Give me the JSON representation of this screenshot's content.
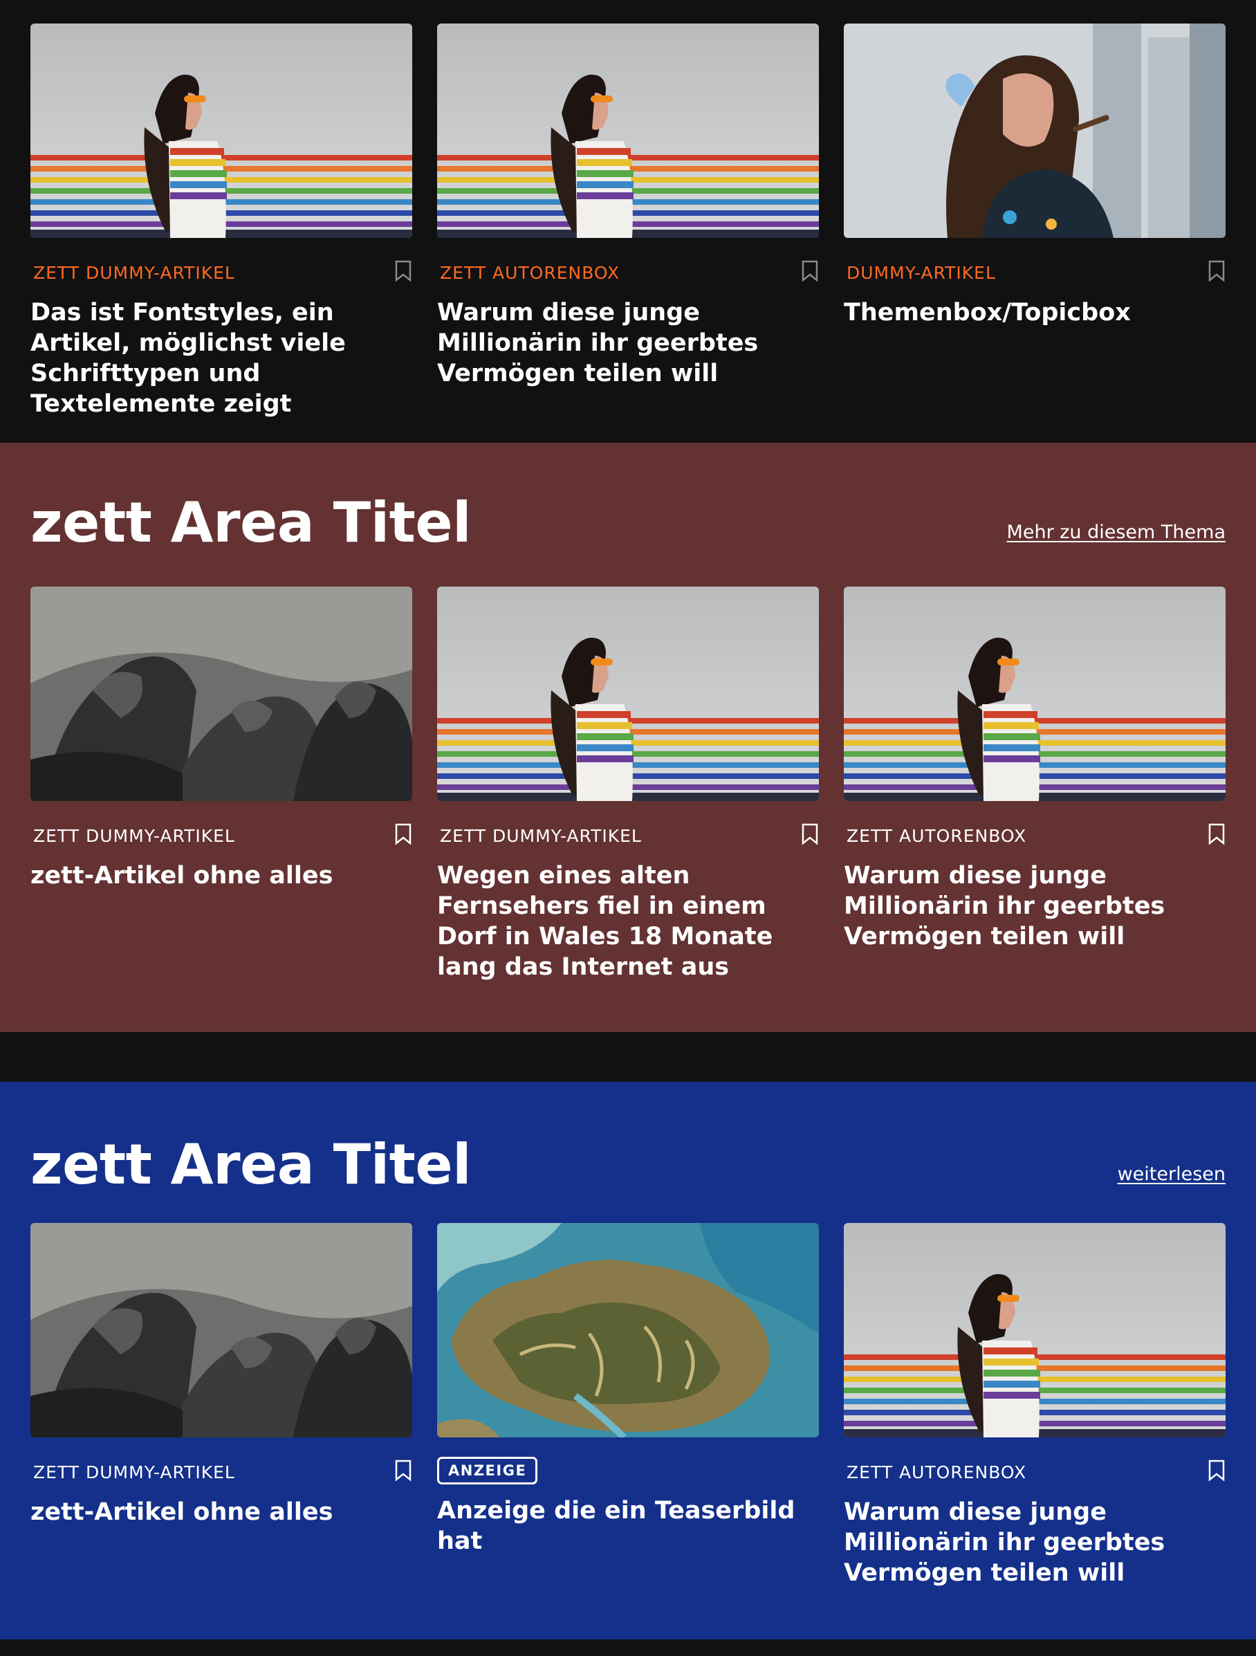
{
  "sections": [
    {
      "type": "teaser-row",
      "cards": [
        {
          "kicker": "ZETT DUMMY-ARTIKEL",
          "headline": "Das ist Fontstyles, ein Artikel, möglichst viele Schrifttypen und Textelemente zeigt",
          "image": "rainbow-woman"
        },
        {
          "kicker": "ZETT AUTORENBOX",
          "headline": "Warum diese junge Millionärin ihr geerbtes Vermögen teilen will",
          "image": "rainbow-woman"
        },
        {
          "kicker": "DUMMY-ARTIKEL",
          "headline": "Themenbox/Topicbox",
          "image": "smoking-woman"
        }
      ]
    },
    {
      "type": "area",
      "title": "zett Area Titel",
      "link": "Mehr zu diesem Thema",
      "background": "#643232",
      "cards": [
        {
          "kicker": "ZETT DUMMY-ARTIKEL",
          "headline": "zett-Artikel ohne alles",
          "image": "battle-scene"
        },
        {
          "kicker": "ZETT DUMMY-ARTIKEL",
          "headline": "Wegen eines alten Fernsehers fiel in einem Dorf in Wales 18 Monate lang das Internet aus",
          "image": "rainbow-woman"
        },
        {
          "kicker": "ZETT AUTORENBOX",
          "headline": "Warum diese junge Millionärin ihr geerbtes Vermögen teilen will",
          "image": "rainbow-woman"
        }
      ]
    },
    {
      "type": "area",
      "title": "zett Area Titel",
      "link": "weiterlesen",
      "background": "#14308a",
      "cards": [
        {
          "kicker": "ZETT DUMMY-ARTIKEL",
          "headline": "zett-Artikel ohne alles",
          "image": "battle-scene"
        },
        {
          "badge": "ANZEIGE",
          "headline": "Anzeige die ein Teaserbild hat",
          "image": "satellite-peninsula"
        },
        {
          "kicker": "ZETT AUTORENBOX",
          "headline": "Warum diese junge Millionärin ihr geerbtes Vermögen teilen will",
          "image": "rainbow-woman"
        }
      ]
    }
  ],
  "icons": {
    "bookmark": "bookmark-icon"
  },
  "colors": {
    "accent": "#ff6a1f",
    "dark": "#111112",
    "brown": "#643232",
    "blue": "#14308a"
  }
}
